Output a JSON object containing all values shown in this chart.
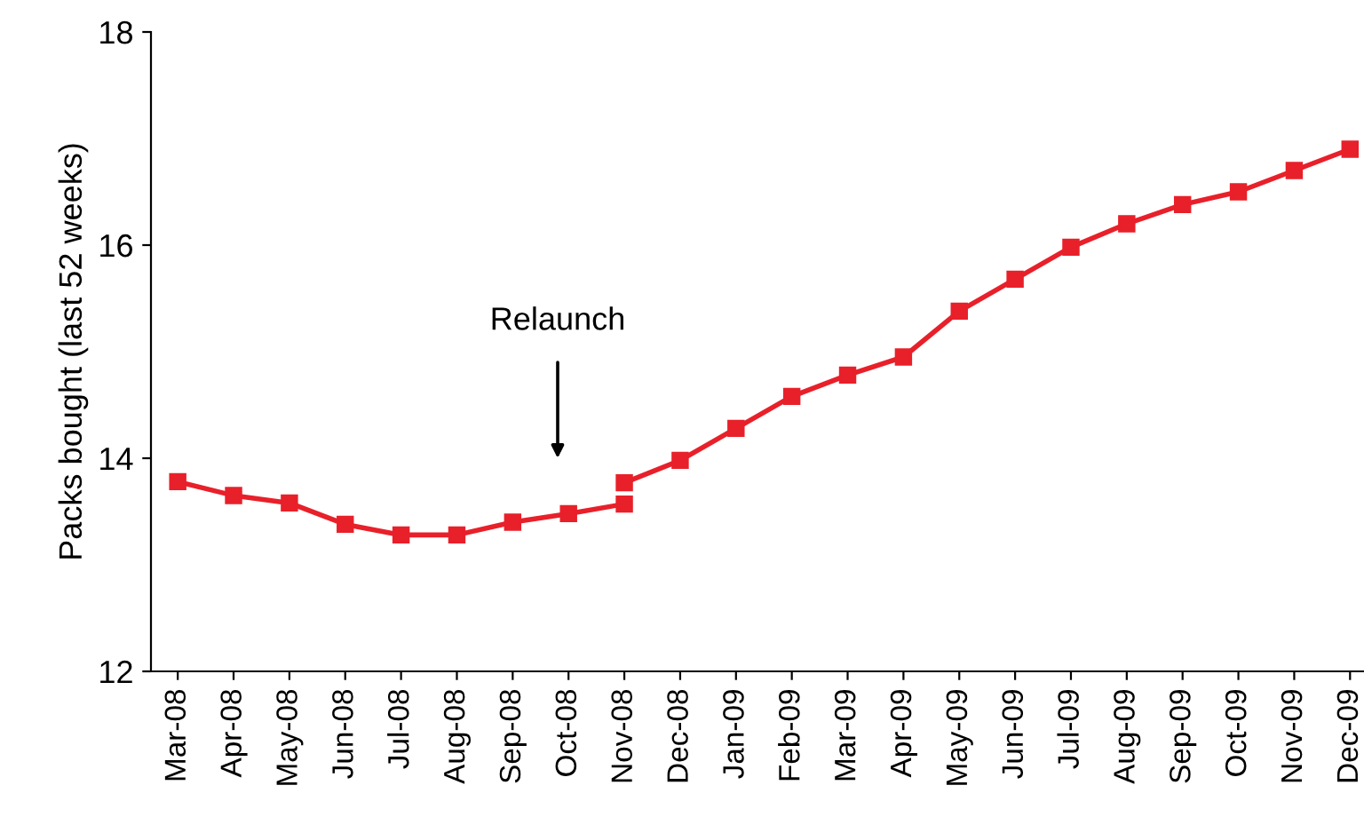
{
  "chart_data": {
    "type": "line",
    "ylabel": "Packs bought (last 52 weeks)",
    "categories": [
      "Mar-08",
      "Apr-08",
      "May-08",
      "Jun-08",
      "Jul-08",
      "Aug-08",
      "Sep-08",
      "Oct-08",
      "Nov-08",
      "Dec-08",
      "Jan-09",
      "Feb-09",
      "Mar-09",
      "Apr-09",
      "May-09",
      "Jun-09",
      "Jul-09",
      "Aug-09",
      "Sep-09",
      "Oct-09",
      "Nov-09",
      "Dec-09"
    ],
    "series": [
      {
        "color": "#e8202a",
        "values": [
          13.78,
          13.65,
          13.58,
          13.38,
          13.28,
          13.28,
          13.4,
          13.48,
          13.57,
          null,
          null,
          null,
          null,
          null,
          null,
          null,
          null,
          null,
          null,
          null,
          null,
          null
        ]
      },
      {
        "color": "#e8202a",
        "values": [
          null,
          null,
          null,
          null,
          null,
          null,
          null,
          null,
          13.77,
          13.98,
          14.28,
          14.58,
          14.78,
          14.95,
          15.38,
          15.68,
          15.98,
          16.2,
          16.38,
          16.5,
          16.7,
          16.9
        ]
      }
    ],
    "ylim": [
      12,
      18
    ],
    "yticks": [
      12,
      14,
      16,
      18
    ],
    "grid": false,
    "legend": false,
    "marker": "square",
    "line_style": "solid",
    "annotations": [
      "Relaunch"
    ]
  }
}
